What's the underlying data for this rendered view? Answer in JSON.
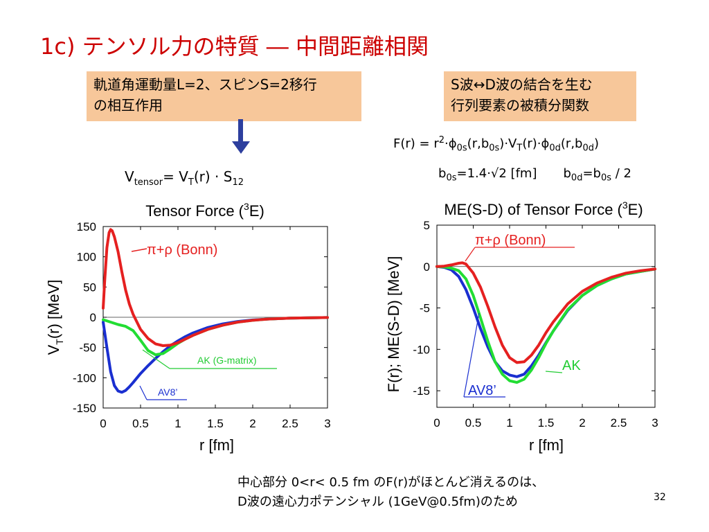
{
  "title": "1c) テンソル力の特質 ― 中間距離相関",
  "box_left": {
    "line1": "軌道角運動量L=2、スピンS=2移行",
    "line2": "の相互作用"
  },
  "box_right": {
    "line1": "S波↔D波の結合を生む",
    "line2": "行列要素の被積分関数"
  },
  "formula_vtensor": {
    "v": "V",
    "sub": "tensor",
    "eq": "= V",
    "sub2": "T",
    "rest": "(r) · S",
    "sub3": "12"
  },
  "formula_f": {
    "p1": "F(r) = r",
    "sup": "2",
    "p2": "·ϕ",
    "s1": "0s",
    "p3": "(r,b",
    "s2": "0s",
    "p4": ")·V",
    "s3": "T",
    "p5": "(r)·ϕ",
    "s4": "0d",
    "p6": "(r,b",
    "s5": "0d",
    "p7": ")"
  },
  "formula_b": {
    "a1": "b",
    "as": "0s",
    "a2": "=1.4·√2  [fm]",
    "b1": "b",
    "bs": "0d",
    "b2": "=b",
    "bs2": "0s",
    "b3": " / 2"
  },
  "note": {
    "line1": "中心部分 0<r< 0.5 fm のF(r)がほとんど消えるのは、",
    "line2": "D波の遠心力ポテンシャル (1GeV@0.5fm)のため"
  },
  "page_number": "32",
  "colors": {
    "bonn": "#e52020",
    "ak": "#22dd33",
    "av8": "#1a2fd0",
    "arrow": "#2d3f9e",
    "title": "#cc0000",
    "box": "#f7c79a"
  },
  "chart_data": [
    {
      "type": "line",
      "title_main": "Tensor Force (",
      "title_sup": "3",
      "title_end": "E)",
      "xlabel": "r [fm]",
      "ylabel": "V",
      "ylabel_sub": "T",
      "ylabel_rest": "(r) [MeV]",
      "xlim": [
        0,
        3
      ],
      "ylim": [
        -150,
        150
      ],
      "xticks": [
        "0",
        "0.5",
        "1",
        "1.5",
        "2",
        "2.5",
        "3"
      ],
      "yticks": [
        "150",
        "100",
        "50",
        "0",
        "-50",
        "-100",
        "-150"
      ],
      "labels": {
        "bonn": "π+ρ (Bonn)",
        "ak": "AK (G-matrix)",
        "av8": "AV8’"
      },
      "series": [
        {
          "key": "bonn",
          "x": [
            0,
            0.02,
            0.05,
            0.08,
            0.1,
            0.12,
            0.15,
            0.2,
            0.25,
            0.3,
            0.35,
            0.4,
            0.5,
            0.6,
            0.7,
            0.8,
            0.9,
            1.0,
            1.1,
            1.2,
            1.4,
            1.6,
            1.8,
            2.0,
            2.2,
            2.5,
            3.0
          ],
          "y": [
            15,
            60,
            115,
            140,
            145,
            143,
            133,
            108,
            75,
            45,
            22,
            5,
            -20,
            -35,
            -44,
            -47,
            -46,
            -42,
            -36,
            -30,
            -20,
            -13,
            -8,
            -5,
            -3,
            -1.5,
            -0.5
          ]
        },
        {
          "key": "ak",
          "x": [
            0,
            0.1,
            0.2,
            0.3,
            0.4,
            0.5,
            0.6,
            0.7,
            0.8,
            0.9,
            1.0,
            1.1,
            1.2,
            1.4,
            1.6,
            1.8,
            2.0,
            2.2,
            2.5,
            3.0
          ],
          "y": [
            -4,
            -8,
            -12,
            -15,
            -22,
            -38,
            -55,
            -62,
            -60,
            -52,
            -43,
            -36,
            -30,
            -20,
            -13,
            -8,
            -5,
            -3,
            -1.5,
            -0.5
          ]
        },
        {
          "key": "av8",
          "x": [
            0,
            0.05,
            0.1,
            0.15,
            0.2,
            0.25,
            0.3,
            0.35,
            0.4,
            0.5,
            0.6,
            0.7,
            0.8,
            0.9,
            1.0,
            1.1,
            1.2,
            1.4,
            1.6,
            1.8,
            2.0,
            2.2,
            2.5,
            3.0
          ],
          "y": [
            -8,
            -50,
            -90,
            -113,
            -122,
            -124,
            -121,
            -115,
            -108,
            -93,
            -80,
            -68,
            -57,
            -47,
            -39,
            -32,
            -26,
            -17,
            -11,
            -7,
            -4.5,
            -3,
            -1.5,
            -0.5
          ]
        }
      ]
    },
    {
      "type": "line",
      "title_main": "ME(S-D) of Tensor Force (",
      "title_sup": "3",
      "title_end": "E)",
      "xlabel": "r [fm]",
      "ylabel": "F(r); ME(S-D) [MeV]",
      "xlim": [
        0,
        3
      ],
      "ylim": [
        -17,
        5
      ],
      "xticks": [
        "0",
        "0.5",
        "1",
        "1.5",
        "2",
        "2.5",
        "3"
      ],
      "yticks": [
        "5",
        "0",
        "-5",
        "-10",
        "-15"
      ],
      "labels": {
        "bonn": "π+ρ (Bonn)",
        "ak": "AK",
        "av8": "AV8’"
      },
      "series": [
        {
          "key": "bonn",
          "x": [
            0,
            0.1,
            0.2,
            0.3,
            0.35,
            0.4,
            0.5,
            0.6,
            0.7,
            0.8,
            0.9,
            1.0,
            1.1,
            1.2,
            1.3,
            1.4,
            1.5,
            1.6,
            1.8,
            2.0,
            2.2,
            2.4,
            2.6,
            2.8,
            3.0
          ],
          "y": [
            0,
            0.05,
            0.2,
            0.4,
            0.45,
            0.3,
            -0.8,
            -2.5,
            -4.8,
            -7.3,
            -9.5,
            -11.0,
            -11.6,
            -11.5,
            -10.7,
            -9.5,
            -8.0,
            -6.7,
            -4.5,
            -3.0,
            -2.0,
            -1.3,
            -0.8,
            -0.5,
            -0.3
          ]
        },
        {
          "key": "ak",
          "x": [
            0,
            0.1,
            0.2,
            0.3,
            0.4,
            0.5,
            0.6,
            0.7,
            0.8,
            0.9,
            1.0,
            1.1,
            1.2,
            1.3,
            1.4,
            1.5,
            1.6,
            1.8,
            2.0,
            2.2,
            2.4,
            2.6,
            2.8,
            3.0
          ],
          "y": [
            0,
            -0.05,
            -0.2,
            -0.5,
            -1.5,
            -3.5,
            -6.2,
            -9.0,
            -11.5,
            -13.0,
            -13.8,
            -14.0,
            -13.6,
            -12.5,
            -11.0,
            -9.3,
            -7.8,
            -5.2,
            -3.5,
            -2.3,
            -1.5,
            -0.9,
            -0.6,
            -0.3
          ]
        },
        {
          "key": "av8",
          "x": [
            0,
            0.1,
            0.2,
            0.3,
            0.4,
            0.5,
            0.6,
            0.7,
            0.8,
            0.9,
            1.0,
            1.1,
            1.2,
            1.3,
            1.4,
            1.5,
            1.6,
            1.8,
            2.0,
            2.2,
            2.4,
            2.6,
            2.8,
            3.0
          ],
          "y": [
            0,
            -0.1,
            -0.4,
            -1.2,
            -2.8,
            -5.0,
            -7.5,
            -9.7,
            -11.5,
            -12.6,
            -13.1,
            -13.3,
            -13.0,
            -12.0,
            -10.7,
            -9.2,
            -7.8,
            -5.3,
            -3.5,
            -2.3,
            -1.5,
            -0.9,
            -0.6,
            -0.3
          ]
        }
      ]
    }
  ]
}
